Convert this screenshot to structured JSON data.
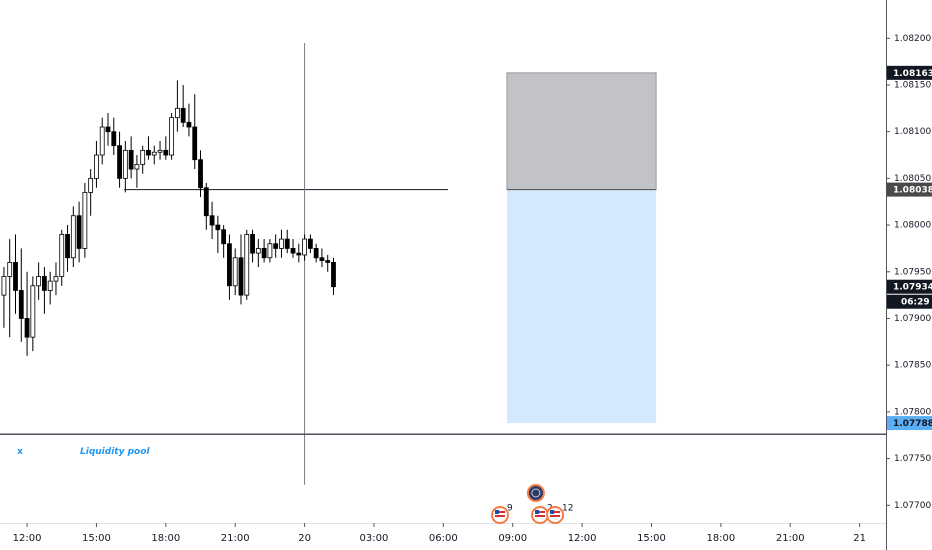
{
  "chart_data": {
    "type": "candlestick",
    "x": [
      -1,
      -0.75,
      -0.5,
      -0.25,
      0,
      0.25,
      0.5,
      0.75,
      1,
      1.25,
      1.5,
      1.75,
      2,
      2.25,
      2.5,
      2.75,
      3,
      3.25,
      3.5,
      3.75,
      4,
      4.25,
      4.5,
      4.75,
      5,
      5.25,
      5.5,
      5.75,
      6,
      6.25,
      6.5,
      6.75,
      7,
      7.25,
      7.5,
      7.75,
      8,
      8.25,
      8.5,
      8.75,
      9,
      9.25,
      9.5,
      9.75,
      10,
      10.25,
      10.5,
      10.75,
      11,
      11.25,
      11.5,
      11.75,
      12,
      12.25,
      12.5,
      12.75,
      13,
      13.25
    ],
    "open": [
      1.07925,
      1.07945,
      1.0796,
      1.0793,
      1.079,
      1.0788,
      1.07935,
      1.07945,
      1.0793,
      1.0794,
      1.07945,
      1.0799,
      1.07965,
      1.0801,
      1.07975,
      1.08035,
      1.0805,
      1.08075,
      1.08105,
      1.081,
      1.08085,
      1.0805,
      1.0808,
      1.0806,
      1.08065,
      1.0808,
      1.08075,
      1.08078,
      1.0808,
      1.08075,
      1.08115,
      1.08125,
      1.0811,
      1.08105,
      1.0807,
      1.0804,
      1.0801,
      1.08,
      1.07995,
      1.0798,
      1.07935,
      1.07965,
      1.07925,
      1.0799,
      1.0797,
      1.07975,
      1.07965,
      1.0798,
      1.07975,
      1.07985,
      1.07975,
      1.0797,
      1.07968,
      1.07985,
      1.07975,
      1.07965,
      1.07962,
      1.0796
    ],
    "high": [
      1.07955,
      1.07985,
      1.0799,
      1.07975,
      1.0795,
      1.07945,
      1.0796,
      1.07955,
      1.0795,
      1.0796,
      1.07995,
      1.08,
      1.0802,
      1.08025,
      1.08045,
      1.0806,
      1.0809,
      1.08115,
      1.0812,
      1.08115,
      1.081,
      1.0809,
      1.08095,
      1.08075,
      1.08085,
      1.08095,
      1.08085,
      1.0809,
      1.08095,
      1.0812,
      1.08155,
      1.0815,
      1.0813,
      1.0814,
      1.0808,
      1.08045,
      1.08025,
      1.0801,
      1.08,
      1.0799,
      1.07975,
      1.0799,
      1.07995,
      1.07995,
      1.07985,
      1.07985,
      1.07985,
      1.0799,
      1.07995,
      1.07995,
      1.07985,
      1.0798,
      1.0799,
      1.0799,
      1.0798,
      1.07975,
      1.07968,
      1.07965
    ],
    "low": [
      1.0789,
      1.0788,
      1.07905,
      1.07875,
      1.0786,
      1.07865,
      1.0792,
      1.07905,
      1.07915,
      1.07925,
      1.07935,
      1.0795,
      1.07955,
      1.0796,
      1.07965,
      1.0801,
      1.0804,
      1.08065,
      1.08085,
      1.08075,
      1.0804,
      1.08035,
      1.0805,
      1.0804,
      1.08055,
      1.0807,
      1.08065,
      1.0807,
      1.0807,
      1.0807,
      1.081,
      1.08105,
      1.08095,
      1.0806,
      1.0803,
      1.07995,
      1.07985,
      1.0797,
      1.07965,
      1.0792,
      1.07925,
      1.07915,
      1.0792,
      1.0796,
      1.07955,
      1.0796,
      1.0796,
      1.07965,
      1.07965,
      1.0797,
      1.07965,
      1.0796,
      1.07962,
      1.0797,
      1.0796,
      1.07955,
      1.0795,
      1.07925
    ],
    "close": [
      1.07945,
      1.0796,
      1.0793,
      1.079,
      1.0788,
      1.07935,
      1.07945,
      1.0793,
      1.0794,
      1.07945,
      1.0799,
      1.07965,
      1.0801,
      1.07975,
      1.08035,
      1.0805,
      1.08075,
      1.08105,
      1.081,
      1.08085,
      1.0805,
      1.0808,
      1.0806,
      1.08065,
      1.0808,
      1.08075,
      1.08078,
      1.0808,
      1.08075,
      1.08115,
      1.08125,
      1.0811,
      1.08105,
      1.0807,
      1.0804,
      1.0801,
      1.08,
      1.07995,
      1.0798,
      1.07935,
      1.07965,
      1.07925,
      1.0799,
      1.0797,
      1.07975,
      1.07965,
      1.0798,
      1.07975,
      1.07985,
      1.07975,
      1.0797,
      1.07968,
      1.07985,
      1.07975,
      1.07965,
      1.07962,
      1.0796,
      1.07934
    ],
    "up_color": "#ffffff",
    "down_color": "#000000",
    "xlim": [
      -1.17,
      37.14
    ],
    "xticks": [
      {
        "value": 0,
        "label": "12:00"
      },
      {
        "value": 3,
        "label": "15:00"
      },
      {
        "value": 6,
        "label": "18:00"
      },
      {
        "value": 9,
        "label": "21:00"
      },
      {
        "value": 12,
        "label": "20"
      },
      {
        "value": 15,
        "label": "03:00"
      },
      {
        "value": 18,
        "label": "06:00"
      },
      {
        "value": 21,
        "label": "09:00"
      },
      {
        "value": 24,
        "label": "12:00"
      },
      {
        "value": 27,
        "label": "15:00"
      },
      {
        "value": 30,
        "label": "18:00"
      },
      {
        "value": 33,
        "label": "21:00"
      },
      {
        "value": 36,
        "label": "21"
      }
    ],
    "ylim": [
      1.07681,
      1.08241
    ],
    "yticks": [
      {
        "value": 1.082,
        "label": "1.08200"
      },
      {
        "value": 1.0815,
        "label": "1.08150"
      },
      {
        "value": 1.081,
        "label": "1.08100"
      },
      {
        "value": 1.0805,
        "label": "1.08050"
      },
      {
        "value": 1.08,
        "label": "1.08000"
      },
      {
        "value": 1.0795,
        "label": "1.07950"
      },
      {
        "value": 1.079,
        "label": "1.07900"
      },
      {
        "value": 1.0785,
        "label": "1.07850"
      },
      {
        "value": 1.078,
        "label": "1.07800"
      },
      {
        "value": 1.0775,
        "label": "1.07750"
      },
      {
        "value": 1.077,
        "label": "1.07700"
      }
    ],
    "horizontal_segment": {
      "value": 1.08038,
      "x": [
        4.19,
        18.2
      ]
    },
    "crosshair": {
      "x": 12,
      "y": [
        1.08195,
        1.07722
      ]
    },
    "position": {
      "x": [
        20.75,
        27.2
      ],
      "target": 1.08163,
      "entry": 1.08038,
      "stop": 1.07788
    },
    "liquidity_line": {
      "value": 1.07776,
      "marker": "x",
      "label": "Liquidity pool"
    },
    "price_labels": [
      {
        "value": 1.08163,
        "color": "#131722"
      },
      {
        "value": 1.08038,
        "color": "#4a4a4a"
      },
      {
        "value": 1.07934,
        "color": "#131722"
      },
      {
        "value": 1.07788,
        "color": "#5aaef5"
      }
    ],
    "countdown": "06:29",
    "events": [
      {
        "x": 20.45,
        "label": "9"
      },
      {
        "x": 22.0
      },
      {
        "x": 22.18,
        "label": "2"
      },
      {
        "x": 22.83,
        "label": "12"
      }
    ]
  }
}
